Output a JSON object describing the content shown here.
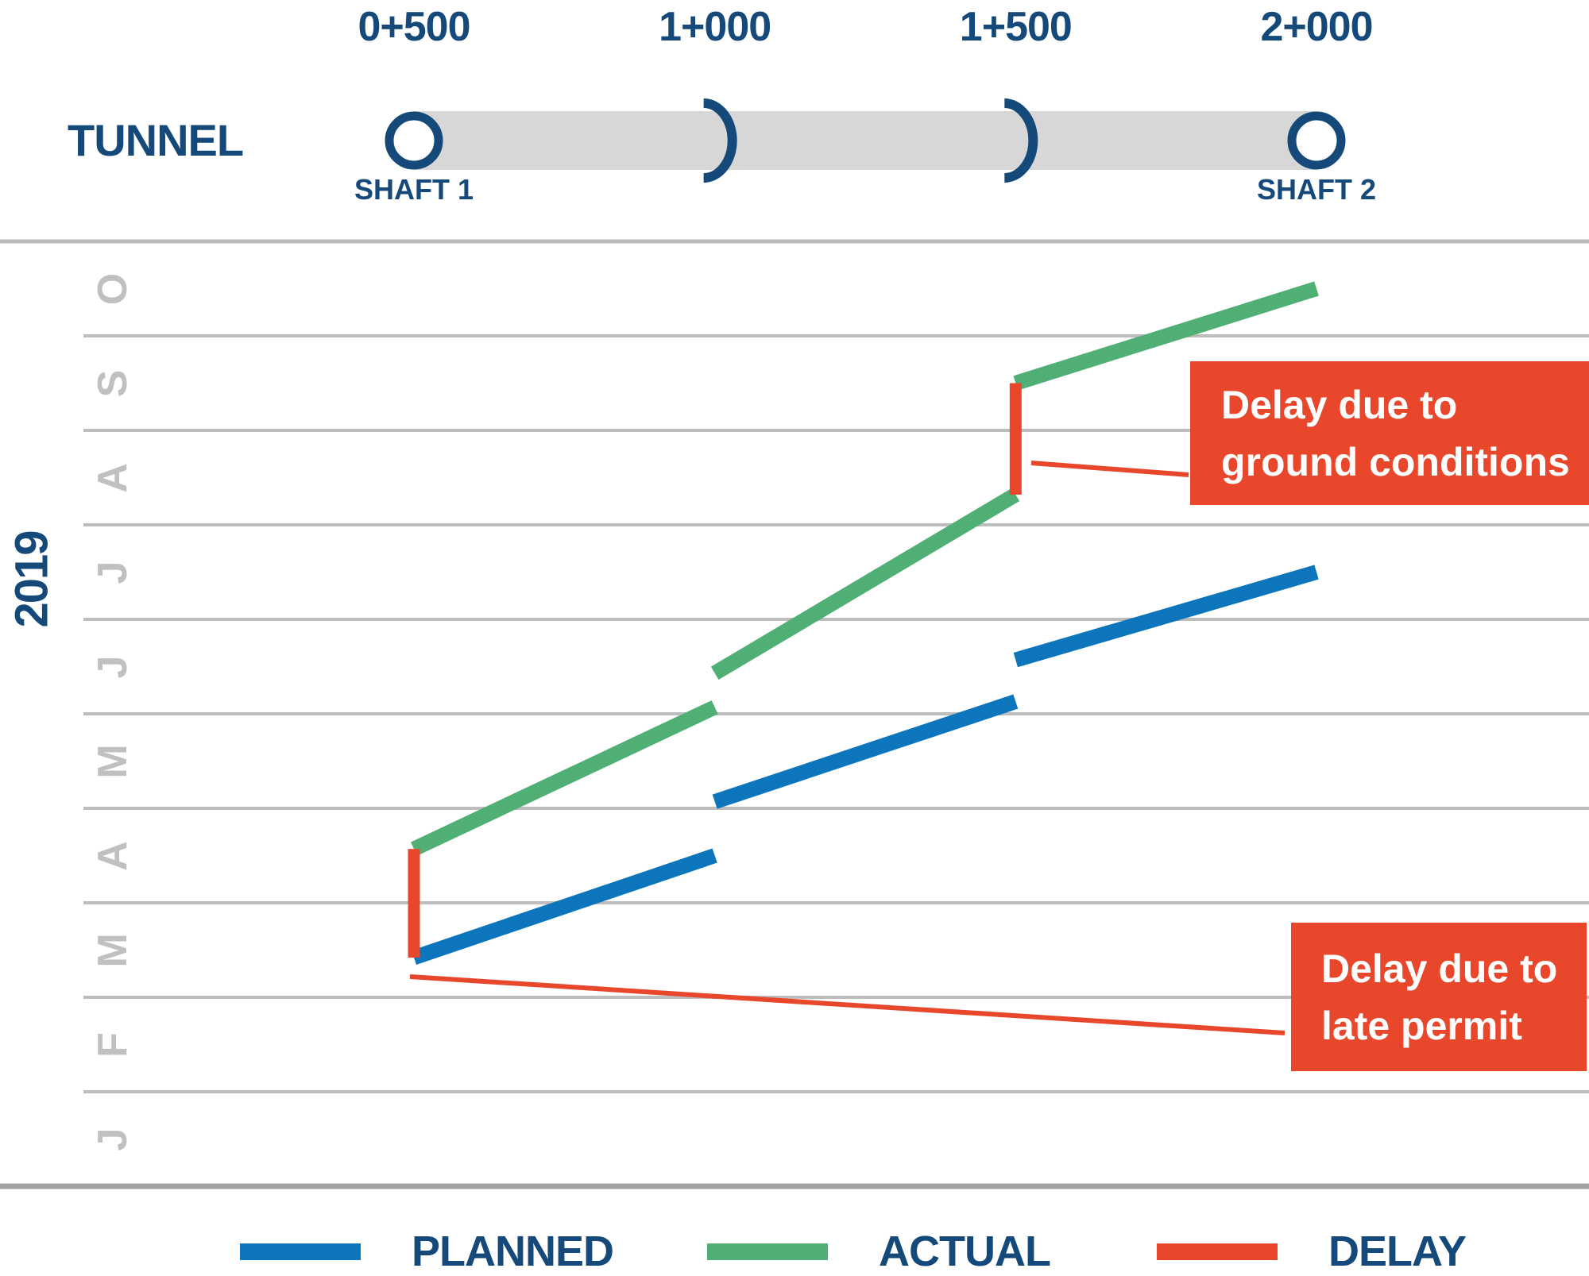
{
  "colors": {
    "navy": "#15497A",
    "planned_blue": "#0C75BB",
    "actual_green": "#4FAF74",
    "delay_red": "#E8472C",
    "tunnel_bar_gray": "#D7D7D7",
    "gridline_gray": "#BDBDBD",
    "axis_gray": "#A3A3A3",
    "month_label_gray": "#C0C0C0"
  },
  "tunnel": {
    "label": "TUNNEL",
    "shaft1_label": "SHAFT 1",
    "shaft2_label": "SHAFT 2",
    "chainage_ticks": [
      {
        "label": "0+500",
        "m": 500
      },
      {
        "label": "1+000",
        "m": 1000
      },
      {
        "label": "1+500",
        "m": 1500
      },
      {
        "label": "2+000",
        "m": 2000
      }
    ],
    "intermediate_points_m": [
      1000,
      1500
    ]
  },
  "chart_data": {
    "type": "line",
    "subtype": "time-location diagram (tunnel drive progress)",
    "year_label": "2019",
    "x_axis": {
      "unit": "tunnel chainage",
      "ticks": [
        500,
        1000,
        1500,
        2000
      ],
      "tick_labels": [
        "0+500",
        "1+000",
        "1+500",
        "2+000"
      ]
    },
    "y_axis": {
      "months_bottom_to_top": [
        "J",
        "F",
        "M",
        "A",
        "M",
        "J",
        "J",
        "A",
        "S",
        "O"
      ],
      "range": "Jan 2019 - Oct 2019",
      "direction": "time increases upward",
      "grid": "horizontal month boundaries"
    },
    "series": [
      {
        "name": "PLANNED",
        "color": "#0C75BB",
        "segments": [
          [
            {
              "chainage": 500,
              "t": 2.42,
              "date": "2019-03-14"
            },
            {
              "chainage": 1000,
              "t": 3.5,
              "date": "2019-04-16"
            }
          ],
          [
            {
              "chainage": 1000,
              "t": 4.07,
              "date": "2019-05-03"
            },
            {
              "chainage": 1500,
              "t": 5.13,
              "date": "2019-06-05"
            }
          ],
          [
            {
              "chainage": 1500,
              "t": 5.57,
              "date": "2019-06-18"
            },
            {
              "chainage": 2000,
              "t": 6.5,
              "date": "2019-07-16"
            }
          ]
        ]
      },
      {
        "name": "ACTUAL",
        "color": "#4FAF74",
        "segments": [
          [
            {
              "chainage": 500,
              "t": 3.57,
              "date": "2019-04-18"
            },
            {
              "chainage": 1000,
              "t": 5.07,
              "date": "2019-06-03"
            }
          ],
          [
            {
              "chainage": 1000,
              "t": 5.43,
              "date": "2019-06-14"
            },
            {
              "chainage": 1500,
              "t": 7.32,
              "date": "2019-08-11"
            }
          ],
          [
            {
              "chainage": 1500,
              "t": 8.5,
              "date": "2019-09-16"
            },
            {
              "chainage": 2000,
              "t": 9.5,
              "date": "2019-10-16"
            }
          ]
        ]
      },
      {
        "name": "DELAY",
        "color": "#E8472C",
        "bars": [
          {
            "chainage": 500,
            "t_start": 2.42,
            "t_end": 3.57,
            "from": "2019-03-14",
            "to": "2019-04-18",
            "cause": "late permit"
          },
          {
            "chainage": 1500,
            "t_start": 7.32,
            "t_end": 8.5,
            "from": "2019-08-11",
            "to": "2019-09-16",
            "cause": "ground conditions"
          }
        ]
      }
    ],
    "legend_position": "bottom"
  },
  "annotations": {
    "ground": {
      "line1": "Delay due to",
      "line2": "ground conditions"
    },
    "permit": {
      "line1": "Delay due to",
      "line2": "late permit"
    }
  },
  "legend": {
    "items": [
      {
        "label": "PLANNED",
        "color": "#0C75BB"
      },
      {
        "label": "ACTUAL",
        "color": "#4FAF74"
      },
      {
        "label": "DELAY",
        "color": "#E8472C"
      }
    ]
  }
}
